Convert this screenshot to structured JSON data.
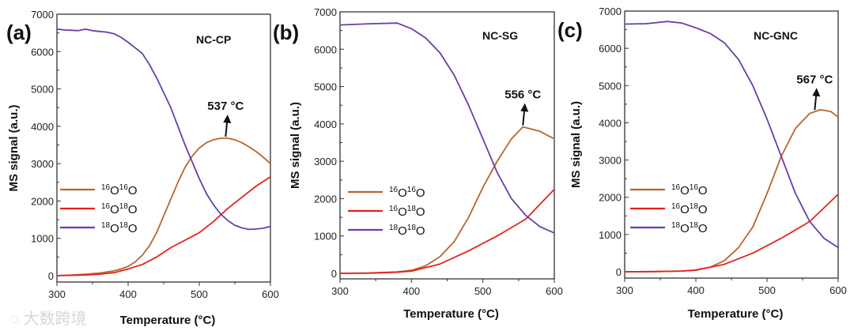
{
  "colors": {
    "o16o16": "#b8652e",
    "o16o18": "#e5231f",
    "o18o18": "#6a3da8"
  },
  "watermark": "大数跨境",
  "chart_data": [
    {
      "type": "line",
      "panel_label": "(a)",
      "sample": "NC-CP",
      "xlabel": "Temperature (°C)",
      "ylabel": "MS signal (a.u.)",
      "xlim": [
        300,
        600
      ],
      "ylim": [
        0,
        7000
      ],
      "xticks": [
        300,
        400,
        500,
        600
      ],
      "yticks": [
        0,
        1000,
        2000,
        3000,
        4000,
        5000,
        6000,
        7000
      ],
      "legend_position": "center-left",
      "annotation": {
        "text": "537 °C",
        "x": 537,
        "y": 3680
      },
      "series": [
        {
          "key": "o16o16",
          "name": "16O16O",
          "sup1": "16",
          "sup2": "16",
          "x": [
            300,
            310,
            320,
            330,
            340,
            350,
            360,
            370,
            380,
            390,
            400,
            410,
            420,
            430,
            440,
            450,
            460,
            470,
            480,
            490,
            500,
            510,
            520,
            530,
            540,
            550,
            560,
            570,
            580,
            590,
            600
          ],
          "y": [
            0,
            10,
            20,
            30,
            40,
            55,
            70,
            100,
            130,
            180,
            250,
            370,
            550,
            800,
            1150,
            1600,
            2050,
            2500,
            2900,
            3200,
            3420,
            3560,
            3640,
            3680,
            3680,
            3640,
            3560,
            3450,
            3320,
            3170,
            3000
          ]
        },
        {
          "key": "o16o18",
          "name": "16O18O",
          "sup1": "16",
          "sup2": "18",
          "x": [
            300,
            320,
            340,
            360,
            380,
            400,
            420,
            440,
            460,
            480,
            500,
            520,
            540,
            560,
            580,
            600
          ],
          "y": [
            0,
            10,
            20,
            40,
            80,
            180,
            300,
            500,
            750,
            950,
            1150,
            1450,
            1800,
            2100,
            2400,
            2650
          ]
        },
        {
          "key": "o18o18",
          "name": "18O18O",
          "sup1": "18",
          "sup2": "18",
          "x": [
            300,
            310,
            320,
            330,
            340,
            350,
            360,
            370,
            380,
            390,
            400,
            410,
            420,
            430,
            440,
            450,
            460,
            470,
            480,
            490,
            500,
            510,
            520,
            530,
            540,
            550,
            560,
            570,
            580,
            590,
            600
          ],
          "y": [
            6600,
            6580,
            6570,
            6560,
            6600,
            6560,
            6540,
            6520,
            6480,
            6380,
            6250,
            6100,
            5950,
            5650,
            5300,
            4900,
            4500,
            4000,
            3500,
            3050,
            2600,
            2200,
            1900,
            1650,
            1480,
            1350,
            1280,
            1240,
            1250,
            1270,
            1320
          ]
        }
      ]
    },
    {
      "type": "line",
      "panel_label": "(b)",
      "sample": "NC-SG",
      "xlabel": "Temperature (°C)",
      "ylabel": "MS signal (a.u.)",
      "xlim": [
        300,
        600
      ],
      "ylim": [
        0,
        7000
      ],
      "xticks": [
        300,
        400,
        500,
        600
      ],
      "yticks": [
        0,
        1000,
        2000,
        3000,
        4000,
        5000,
        6000,
        7000
      ],
      "legend_position": "center-left",
      "annotation": {
        "text": "556 °C",
        "x": 556,
        "y": 3920
      },
      "series": [
        {
          "key": "o16o16",
          "name": "16O16O",
          "sup1": "16",
          "sup2": "16",
          "x": [
            300,
            340,
            380,
            400,
            420,
            440,
            460,
            480,
            500,
            520,
            540,
            556,
            580,
            600
          ],
          "y": [
            0,
            10,
            40,
            80,
            200,
            450,
            850,
            1500,
            2300,
            3000,
            3600,
            3920,
            3800,
            3600
          ]
        },
        {
          "key": "o16o18",
          "name": "16O18O",
          "sup1": "16",
          "sup2": "18",
          "x": [
            300,
            340,
            380,
            400,
            440,
            480,
            520,
            560,
            600
          ],
          "y": [
            0,
            5,
            30,
            60,
            250,
            600,
            1000,
            1450,
            2250
          ]
        },
        {
          "key": "o18o18",
          "name": "18O18O",
          "sup1": "18",
          "sup2": "18",
          "x": [
            300,
            340,
            380,
            400,
            420,
            440,
            460,
            480,
            500,
            520,
            540,
            560,
            580,
            600
          ],
          "y": [
            6650,
            6680,
            6700,
            6550,
            6300,
            5900,
            5300,
            4500,
            3600,
            2700,
            2000,
            1550,
            1250,
            1080
          ]
        }
      ]
    },
    {
      "type": "line",
      "panel_label": "(c)",
      "sample": "NC-GNC",
      "xlabel": "Temperature (°C)",
      "ylabel": "MS signal (a.u.)",
      "xlim": [
        300,
        600
      ],
      "ylim": [
        0,
        7000
      ],
      "xticks": [
        300,
        400,
        500,
        600
      ],
      "yticks": [
        0,
        1000,
        2000,
        3000,
        4000,
        5000,
        6000,
        7000
      ],
      "legend_position": "center-left",
      "annotation": {
        "text": "567 °C",
        "x": 567,
        "y": 4300
      },
      "series": [
        {
          "key": "o16o16",
          "name": "16O16O",
          "sup1": "16",
          "sup2": "16",
          "x": [
            300,
            340,
            380,
            400,
            420,
            440,
            460,
            480,
            500,
            520,
            540,
            560,
            575,
            590,
            600
          ],
          "y": [
            0,
            5,
            20,
            50,
            120,
            300,
            650,
            1200,
            2100,
            3100,
            3850,
            4250,
            4350,
            4300,
            4150
          ]
        },
        {
          "key": "o16o18",
          "name": "16O18O",
          "sup1": "16",
          "sup2": "18",
          "x": [
            300,
            340,
            380,
            400,
            440,
            480,
            520,
            560,
            600
          ],
          "y": [
            0,
            5,
            20,
            40,
            200,
            500,
            900,
            1350,
            2080
          ]
        },
        {
          "key": "o18o18",
          "name": "18O18O",
          "sup1": "18",
          "sup2": "18",
          "x": [
            300,
            330,
            360,
            380,
            400,
            420,
            440,
            460,
            480,
            500,
            520,
            540,
            560,
            580,
            600
          ],
          "y": [
            6650,
            6660,
            6720,
            6680,
            6550,
            6400,
            6150,
            5700,
            5000,
            4100,
            3100,
            2100,
            1350,
            900,
            650
          ]
        }
      ]
    }
  ]
}
